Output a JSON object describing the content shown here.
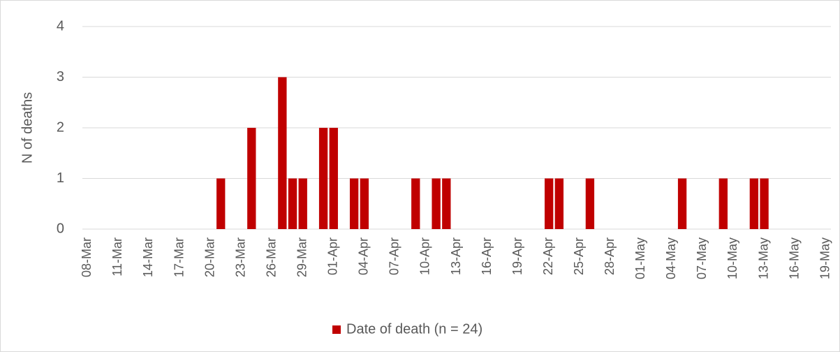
{
  "chart_data": {
    "type": "bar",
    "y_label": "N of deaths",
    "categories": [
      "08-Mar",
      null,
      null,
      "11-Mar",
      null,
      null,
      "14-Mar",
      null,
      null,
      "17-Mar",
      null,
      null,
      "20-Mar",
      null,
      null,
      "23-Mar",
      null,
      null,
      "26-Mar",
      null,
      null,
      "29-Mar",
      null,
      null,
      "01-Apr",
      null,
      null,
      "04-Apr",
      null,
      null,
      "07-Apr",
      null,
      null,
      "10-Apr",
      null,
      null,
      "13-Apr",
      null,
      null,
      "16-Apr",
      null,
      null,
      "19-Apr",
      null,
      null,
      "22-Apr",
      null,
      null,
      "25-Apr",
      null,
      null,
      "28-Apr",
      null,
      null,
      "01-May",
      null,
      null,
      "04-May",
      null,
      null,
      "07-May",
      null,
      null,
      "10-May",
      null,
      null,
      "13-May",
      null,
      null,
      "16-May",
      null,
      null,
      "19-May"
    ],
    "series": [
      {
        "name": "Date of death (n = 24)",
        "color": "#c00000",
        "values": [
          0,
          0,
          0,
          0,
          0,
          0,
          0,
          0,
          0,
          0,
          0,
          0,
          0,
          1,
          0,
          0,
          2,
          0,
          0,
          3,
          1,
          1,
          0,
          2,
          2,
          0,
          1,
          1,
          0,
          0,
          0,
          0,
          1,
          0,
          1,
          1,
          0,
          0,
          0,
          0,
          0,
          0,
          0,
          0,
          0,
          1,
          1,
          0,
          0,
          1,
          0,
          0,
          0,
          0,
          0,
          0,
          0,
          0,
          1,
          0,
          0,
          0,
          1,
          0,
          0,
          1,
          1,
          0,
          0,
          0,
          0,
          0,
          0
        ]
      }
    ],
    "ylim": [
      0,
      4
    ],
    "yticks": [
      0,
      1,
      2,
      3,
      4
    ],
    "grid": true,
    "legend": "bottom"
  }
}
